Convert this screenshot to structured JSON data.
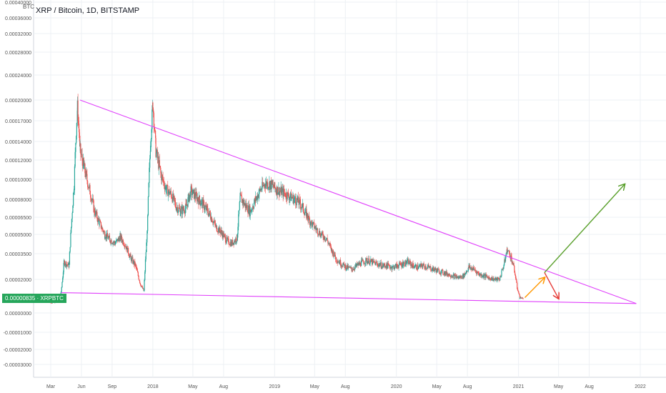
{
  "header": {
    "title": "XRP / Bitcoin, 1D, BITSTAMP",
    "unit": "BTC"
  },
  "price_tag": {
    "value": "0.00000835",
    "symbol": "XRPBTC",
    "color": "#26a65b"
  },
  "colors": {
    "up": "#26a69a",
    "down": "#ef5350",
    "trendline": "#e040fb",
    "arrow_up": "#5aa02c",
    "arrow_orange": "#ff9800",
    "arrow_down": "#e53935",
    "grid": "#edf0f4",
    "axis_text": "#555555"
  },
  "chart_data": {
    "type": "candlestick",
    "x_axis_ticks": [
      "Mar",
      "Jun",
      "Sep",
      "2018",
      "May",
      "Aug",
      "2019",
      "May",
      "Aug",
      "2020",
      "May",
      "Aug",
      "2021",
      "May",
      "Aug",
      "2022"
    ],
    "y_axis_ticks": [
      "0.00040000",
      "0.00036000",
      "0.00032000",
      "0.00028000",
      "0.00024000",
      "0.00020000",
      "0.00017000",
      "0.00014000",
      "0.00012000",
      "0.00010000",
      "0.00008000",
      "0.00006500",
      "0.00005000",
      "0.00003500",
      "0.00002000",
      "0.00000835",
      "0.00000000",
      "-0.00001000",
      "-0.00002000",
      "-0.00003000"
    ],
    "series": [
      {
        "values": [
          [
            "2017-03-01",
            6e-06
          ],
          [
            "2017-03-15",
            6.5e-06
          ],
          [
            "2017-04-01",
            1.2e-05
          ],
          [
            "2017-04-10",
            3e-05
          ],
          [
            "2017-04-25",
            2.8e-05
          ],
          [
            "2017-05-10",
            9.5e-05
          ],
          [
            "2017-05-20",
            0.00019
          ],
          [
            "2017-05-28",
            0.00013
          ],
          [
            "2017-06-10",
            0.00011
          ],
          [
            "2017-06-25",
            9e-05
          ],
          [
            "2017-07-10",
            7e-05
          ],
          [
            "2017-07-25",
            6e-05
          ],
          [
            "2017-08-10",
            5e-05
          ],
          [
            "2017-08-25",
            4.6e-05
          ],
          [
            "2017-09-10",
            4.3e-05
          ],
          [
            "2017-09-25",
            4.8e-05
          ],
          [
            "2017-10-10",
            4.2e-05
          ],
          [
            "2017-10-25",
            3.3e-05
          ],
          [
            "2017-11-10",
            2.8e-05
          ],
          [
            "2017-11-25",
            1.7e-05
          ],
          [
            "2017-12-05",
            1.3e-05
          ],
          [
            "2017-12-15",
            5e-05
          ],
          [
            "2017-12-25",
            0.00014
          ],
          [
            "2018-01-01",
            0.000195
          ],
          [
            "2018-01-10",
            0.00013
          ],
          [
            "2018-01-25",
            0.000105
          ],
          [
            "2018-02-10",
            9e-05
          ],
          [
            "2018-02-25",
            8.5e-05
          ],
          [
            "2018-03-10",
            7.5e-05
          ],
          [
            "2018-03-25",
            7e-05
          ],
          [
            "2018-04-10",
            7.3e-05
          ],
          [
            "2018-04-25",
            8.8e-05
          ],
          [
            "2018-05-10",
            8.3e-05
          ],
          [
            "2018-05-25",
            7.8e-05
          ],
          [
            "2018-06-10",
            7.2e-05
          ],
          [
            "2018-06-25",
            6.5e-05
          ],
          [
            "2018-07-10",
            5.6e-05
          ],
          [
            "2018-07-25",
            5.2e-05
          ],
          [
            "2018-08-10",
            4.5e-05
          ],
          [
            "2018-08-25",
            4.3e-05
          ],
          [
            "2018-09-10",
            4.7e-05
          ],
          [
            "2018-09-20",
            8.2e-05
          ],
          [
            "2018-10-05",
            7.5e-05
          ],
          [
            "2018-10-20",
            7e-05
          ],
          [
            "2018-11-05",
            8e-05
          ],
          [
            "2018-11-20",
            9e-05
          ],
          [
            "2018-12-05",
            9.6e-05
          ],
          [
            "2018-12-20",
            9.5e-05
          ],
          [
            "2019-01-05",
            9e-05
          ],
          [
            "2019-01-20",
            8.8e-05
          ],
          [
            "2019-02-05",
            8.5e-05
          ],
          [
            "2019-02-20",
            8.2e-05
          ],
          [
            "2019-03-05",
            8e-05
          ],
          [
            "2019-03-20",
            7.6e-05
          ],
          [
            "2019-04-05",
            6.8e-05
          ],
          [
            "2019-04-20",
            6e-05
          ],
          [
            "2019-05-05",
            5.5e-05
          ],
          [
            "2019-05-20",
            5e-05
          ],
          [
            "2019-06-05",
            4.7e-05
          ],
          [
            "2019-06-20",
            3.8e-05
          ],
          [
            "2019-07-05",
            3.2e-05
          ],
          [
            "2019-07-20",
            2.9e-05
          ],
          [
            "2019-08-05",
            2.7e-05
          ],
          [
            "2019-08-20",
            2.6e-05
          ],
          [
            "2019-09-05",
            2.8e-05
          ],
          [
            "2019-09-20",
            3e-05
          ],
          [
            "2019-10-05",
            3.1e-05
          ],
          [
            "2019-10-20",
            3e-05
          ],
          [
            "2019-11-05",
            2.9e-05
          ],
          [
            "2019-11-20",
            2.8e-05
          ],
          [
            "2019-12-05",
            2.8e-05
          ],
          [
            "2019-12-20",
            2.7e-05
          ],
          [
            "2020-01-05",
            2.8e-05
          ],
          [
            "2020-01-20",
            2.9e-05
          ],
          [
            "2020-02-05",
            3e-05
          ],
          [
            "2020-02-20",
            2.8e-05
          ],
          [
            "2020-03-05",
            2.7e-05
          ],
          [
            "2020-03-20",
            2.8e-05
          ],
          [
            "2020-04-05",
            2.7e-05
          ],
          [
            "2020-04-20",
            2.6e-05
          ],
          [
            "2020-05-05",
            2.5e-05
          ],
          [
            "2020-05-20",
            2.4e-05
          ],
          [
            "2020-06-05",
            2.3e-05
          ],
          [
            "2020-06-20",
            2.2e-05
          ],
          [
            "2020-07-05",
            2.1e-05
          ],
          [
            "2020-07-20",
            2.2e-05
          ],
          [
            "2020-08-05",
            2.7e-05
          ],
          [
            "2020-08-20",
            2.6e-05
          ],
          [
            "2020-09-05",
            2.3e-05
          ],
          [
            "2020-09-20",
            2.2e-05
          ],
          [
            "2020-10-05",
            2.1e-05
          ],
          [
            "2020-10-20",
            2e-05
          ],
          [
            "2020-11-05",
            2e-05
          ],
          [
            "2020-11-20",
            3e-05
          ],
          [
            "2020-11-28",
            3.8e-05
          ],
          [
            "2020-12-10",
            3.3e-05
          ],
          [
            "2020-12-20",
            2.5e-05
          ],
          [
            "2020-12-28",
            1.5e-05
          ],
          [
            "2021-01-05",
            9e-06
          ],
          [
            "2021-01-15",
            8.5e-06
          ]
        ]
      }
    ],
    "annotations": [
      {
        "type": "upper-trendline",
        "points": [
          [
            "2017-05-28",
            0.0002
          ],
          [
            "2021-12-20",
            5.5e-06
          ]
        ]
      },
      {
        "type": "lower-trendline",
        "points": [
          [
            "2017-04-01",
            1.2e-05
          ],
          [
            "2021-12-20",
            5.5e-06
          ]
        ]
      },
      {
        "type": "arrow-orange",
        "points": [
          [
            "2021-01-20",
            9e-06
          ],
          [
            "2021-03-20",
            2.1e-05
          ]
        ]
      },
      {
        "type": "arrow-red",
        "points": [
          [
            "2021-03-20",
            2.4e-05
          ],
          [
            "2021-05-01",
            8.5e-06
          ]
        ]
      },
      {
        "type": "arrow-green",
        "points": [
          [
            "2021-03-20",
            2.4e-05
          ],
          [
            "2021-11-15",
            9.5e-05
          ]
        ]
      }
    ]
  }
}
